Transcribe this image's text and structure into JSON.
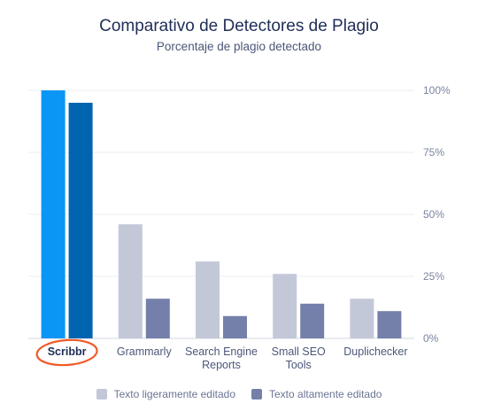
{
  "title": "Comparativo de Detectores de Plagio",
  "subtitle": "Porcentaje de plagio detectado",
  "chart_data": {
    "type": "bar",
    "title": "Comparativo de Detectores de Plagio",
    "subtitle": "Porcentaje de plagio detectado",
    "categories": [
      "Scribbr",
      "Grammarly",
      "Search Engine Reports",
      "Small SEO Tools",
      "Duplichecker"
    ],
    "category_lines": [
      [
        "Scribbr"
      ],
      [
        "Grammarly"
      ],
      [
        "Search Engine",
        "Reports"
      ],
      [
        "Small SEO",
        "Tools"
      ],
      [
        "Duplichecker"
      ]
    ],
    "highlighted_category": "Scribbr",
    "series": [
      {
        "name": "Texto ligeramente editado",
        "values": [
          100,
          46,
          31,
          26,
          16
        ]
      },
      {
        "name": "Texto altamente editado",
        "values": [
          95,
          16,
          9,
          14,
          11
        ]
      }
    ],
    "ylim": [
      0,
      100
    ],
    "yticks": [
      0,
      25,
      50,
      75,
      100
    ],
    "ytick_labels": [
      "0%",
      "25%",
      "50%",
      "75%",
      "100%"
    ],
    "y_axis_side": "right",
    "grid": true,
    "legend_position": "bottom",
    "colors": {
      "series_default": [
        "#c3c8d9",
        "#7480aa"
      ],
      "series_highlight": [
        "#0a96f5",
        "#0064b0"
      ],
      "grid": "#e9ecf2",
      "axis_text": "#7b84a0",
      "category_text": "#4b5778",
      "highlight_text": "#1f2d57",
      "highlight_ring": "#f05a28"
    }
  }
}
